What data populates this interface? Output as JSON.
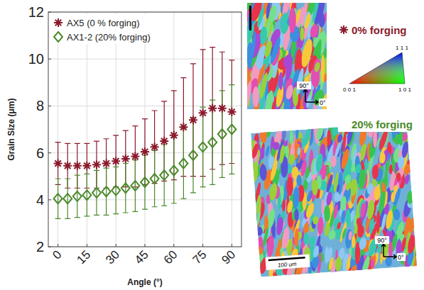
{
  "chart_data": {
    "type": "scatter",
    "x_label": "Angle (°)",
    "y_label": "Grain Size (μm)",
    "x": [
      0,
      5,
      10,
      15,
      20,
      25,
      30,
      35,
      40,
      45,
      50,
      55,
      60,
      65,
      70,
      75,
      80,
      85,
      90
    ],
    "series": [
      {
        "name": "AX5 (0 % forging)",
        "color": "#8b1a2b",
        "marker": "asterisk",
        "values": [
          5.55,
          5.45,
          5.45,
          5.45,
          5.5,
          5.55,
          5.65,
          5.75,
          5.85,
          6.05,
          6.25,
          6.5,
          6.75,
          7.1,
          7.4,
          7.7,
          7.9,
          7.9,
          7.75
        ],
        "errors": [
          0.9,
          0.95,
          0.95,
          0.95,
          1.0,
          1.05,
          1.1,
          1.2,
          1.3,
          1.4,
          1.55,
          1.7,
          1.9,
          2.1,
          2.4,
          2.7,
          2.6,
          2.4,
          2.2
        ]
      },
      {
        "name": "AX1-2 (20% forging)",
        "color": "#4a8a2a",
        "marker": "diamond",
        "values": [
          4.05,
          4.05,
          4.15,
          4.2,
          4.3,
          4.35,
          4.4,
          4.5,
          4.6,
          4.75,
          4.9,
          5.05,
          5.25,
          5.55,
          5.9,
          6.25,
          6.45,
          6.8,
          7.0
        ],
        "errors": [
          0.85,
          0.85,
          0.9,
          0.9,
          0.95,
          1.0,
          1.0,
          1.05,
          1.1,
          1.15,
          1.2,
          1.3,
          1.4,
          1.5,
          1.6,
          1.7,
          1.8,
          1.85,
          1.9
        ]
      }
    ],
    "xlim": [
      -5,
      95
    ],
    "ylim": [
      2,
      12
    ],
    "xticks": [
      0,
      15,
      30,
      45,
      60,
      75,
      90
    ],
    "yticks": [
      2,
      4,
      6,
      8,
      10,
      12
    ],
    "grid": true,
    "legend": "upper left"
  },
  "micrographs": [
    {
      "label": "0% forging",
      "vertical": "90°",
      "horizontal": "0°"
    },
    {
      "label": "20% forging",
      "vertical": "90°",
      "horizontal": "0°",
      "scale_bar": "100 um"
    }
  ],
  "ipf_legend": {
    "corners": [
      "0 0 1",
      "1 0 1",
      "1 1 1"
    ]
  }
}
